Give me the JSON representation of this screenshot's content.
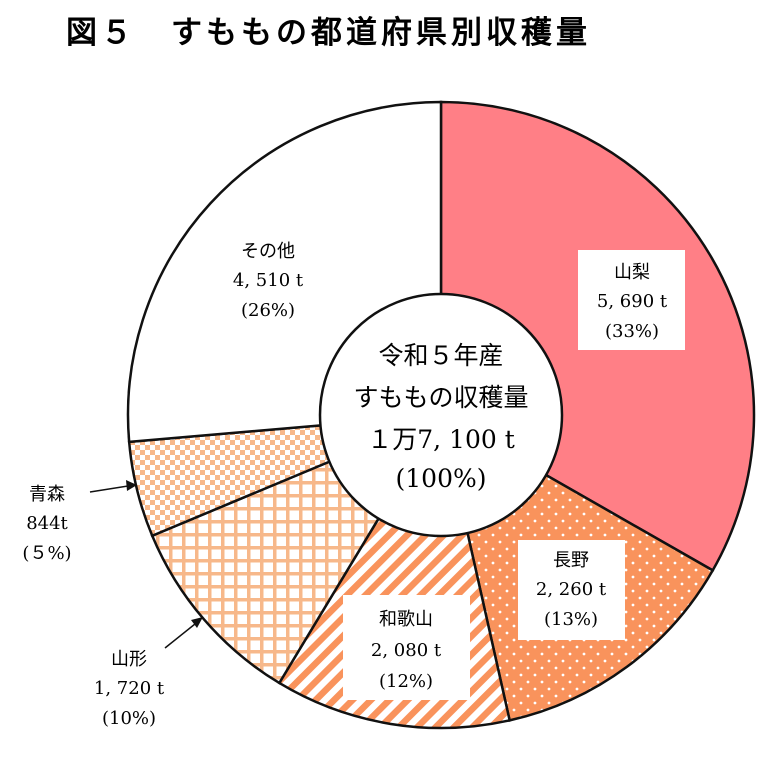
{
  "title": "図５　すももの都道府県別収穫量",
  "center": {
    "line1": "令和５年産",
    "line2": "すももの収穫量",
    "line3": "１万7, 100 t",
    "line4": "(100%)"
  },
  "chart_data": {
    "type": "pie",
    "title": "図５　すももの都道府県別収穫量",
    "total": 17100,
    "unit": "t",
    "slices": [
      {
        "name": "山梨",
        "value": 5690,
        "value_label": "5, 690 t",
        "percent_label": "(33%)",
        "pattern": "solid",
        "color": "#FF7F86"
      },
      {
        "name": "長野",
        "value": 2260,
        "value_label": "2, 260 t",
        "percent_label": "(13%)",
        "pattern": "dots",
        "color": "#F9935C"
      },
      {
        "name": "和歌山",
        "value": 2080,
        "value_label": "2, 080 t",
        "percent_label": "(12%)",
        "pattern": "stripes",
        "color": "#F9935C"
      },
      {
        "name": "山形",
        "value": 1720,
        "value_label": "1, 720 t",
        "percent_label": "(10%)",
        "pattern": "grid",
        "color": "#F5A66E"
      },
      {
        "name": "青森",
        "value": 844,
        "value_label": "844t",
        "percent_label": "(５%)",
        "pattern": "check",
        "color": "#F5A66E"
      },
      {
        "name": "その他",
        "value": 4510,
        "value_label": "4, 510 t",
        "percent_label": "(26%)",
        "pattern": "none",
        "color": "#FFFFFF"
      }
    ]
  }
}
